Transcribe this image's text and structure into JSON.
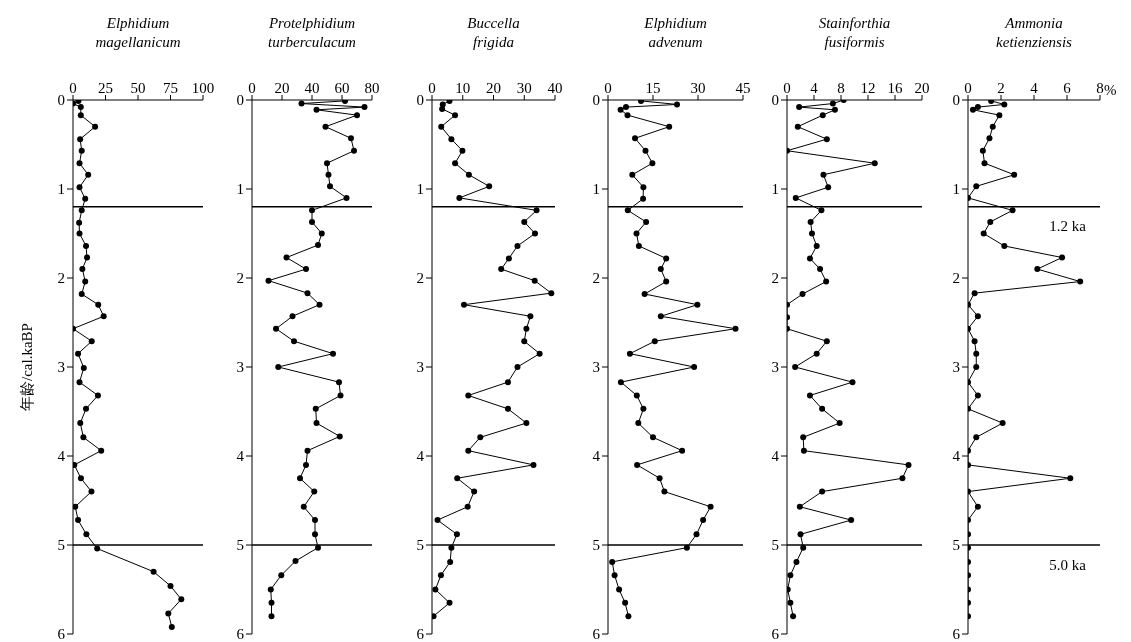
{
  "chart_data": [
    {
      "type": "line",
      "orientation": "horizontal",
      "title": "Elphidium magellanicum",
      "ylabel": "年龄/cal.kaBP",
      "xlim": [
        0,
        100
      ],
      "xticks": [
        0,
        25,
        50,
        75,
        100
      ],
      "ylim": [
        6,
        0
      ],
      "yticks": [
        0,
        1,
        2,
        3,
        4,
        5,
        6
      ],
      "marker": "circle",
      "series": [
        {
          "color": "#000000",
          "x": [
            0.01,
            0.04,
            0.08,
            0.17,
            0.3,
            0.44,
            0.57,
            0.71,
            0.84,
            0.98,
            1.11,
            1.24,
            1.38,
            1.5,
            1.64,
            1.77,
            1.9,
            2.04,
            2.18,
            2.3,
            2.43,
            2.57,
            2.71,
            2.85,
            3.01,
            3.17,
            3.32,
            3.47,
            3.63,
            3.79,
            3.94,
            4.1,
            4.25,
            4.4,
            4.57,
            4.72,
            4.88,
            5.04,
            5.3,
            5.46,
            5.61,
            5.77,
            5.92
          ],
          "values": [
            4.2,
            0,
            6,
            6,
            17,
            5.5,
            6.7,
            5,
            11.7,
            5,
            9.4,
            6.7,
            4.7,
            5,
            10,
            10.8,
            7.2,
            9.4,
            6.7,
            19.4,
            23.6,
            0,
            14.4,
            3.9,
            8.3,
            5,
            19.2,
            10,
            5.6,
            8,
            21.7,
            1,
            6.1,
            14.2,
            1.7,
            3.9,
            10.3,
            18.6,
            62,
            75,
            83.3,
            73.3,
            76
          ]
        }
      ],
      "ref_lines": [
        {
          "axis": "y",
          "value": 1.2
        },
        {
          "axis": "y",
          "value": 5.0
        }
      ]
    },
    {
      "type": "line",
      "orientation": "horizontal",
      "title": "Protelphidium turberculacum",
      "xlim": [
        0,
        80
      ],
      "xticks": [
        0,
        20,
        40,
        60,
        80
      ],
      "ylim": [
        6,
        0
      ],
      "yticks": [
        0,
        1,
        2,
        3,
        4,
        5,
        6
      ],
      "marker": "circle",
      "series": [
        {
          "color": "#000000",
          "x": [
            0.01,
            0.04,
            0.08,
            0.11,
            0.17,
            0.3,
            0.43,
            0.57,
            0.71,
            0.84,
            0.97,
            1.1,
            1.24,
            1.37,
            1.5,
            1.63,
            1.77,
            1.9,
            2.03,
            2.17,
            2.3,
            2.43,
            2.57,
            2.71,
            2.85,
            3.0,
            3.17,
            3.32,
            3.47,
            3.63,
            3.78,
            3.94,
            4.1,
            4.25,
            4.4,
            4.57,
            4.72,
            4.88,
            5.03,
            5.18,
            5.34,
            5.5,
            5.65,
            5.8
          ],
          "values": [
            62,
            33,
            75,
            43,
            70,
            49,
            66,
            68,
            50,
            51,
            52,
            63,
            40,
            40,
            46.5,
            44,
            23,
            36,
            11,
            37,
            45,
            27,
            16,
            28,
            54,
            17.5,
            58,
            59,
            42.5,
            43,
            58.5,
            37,
            36,
            32,
            41.5,
            34.5,
            42,
            42,
            44,
            29,
            19.5,
            12.5,
            13,
            13
          ]
        }
      ],
      "ref_lines": [
        {
          "axis": "y",
          "value": 1.2
        },
        {
          "axis": "y",
          "value": 5.0
        }
      ]
    },
    {
      "type": "line",
      "orientation": "horizontal",
      "title": "Buccella frigida",
      "xlim": [
        0,
        40
      ],
      "xticks": [
        0,
        10,
        20,
        30,
        40
      ],
      "ylim": [
        6,
        0
      ],
      "yticks": [
        0,
        1,
        2,
        3,
        4,
        5,
        6
      ],
      "marker": "circle",
      "series": [
        {
          "color": "#000000",
          "x": [
            0.01,
            0.05,
            0.1,
            0.17,
            0.3,
            0.44,
            0.57,
            0.71,
            0.84,
            0.97,
            1.1,
            1.24,
            1.37,
            1.5,
            1.64,
            1.78,
            1.9,
            2.03,
            2.17,
            2.3,
            2.43,
            2.57,
            2.71,
            2.85,
            3.0,
            3.17,
            3.32,
            3.47,
            3.63,
            3.79,
            3.94,
            4.1,
            4.25,
            4.4,
            4.57,
            4.72,
            4.88,
            5.03,
            5.19,
            5.34,
            5.5,
            5.65,
            5.8
          ],
          "values": [
            5.7,
            3.5,
            3.3,
            7.5,
            3,
            6.3,
            9.9,
            7.5,
            12,
            18.6,
            8.9,
            34,
            30,
            33.5,
            27.8,
            25,
            22.5,
            33.4,
            38.8,
            10.4,
            32,
            30.7,
            30,
            35,
            27.8,
            24.7,
            11.8,
            24.7,
            30.7,
            15.7,
            11.8,
            33,
            8.2,
            13.7,
            11.6,
            1.8,
            8.1,
            6.3,
            5.9,
            2.9,
            1.1,
            5.7,
            0.5
          ]
        }
      ],
      "ref_lines": [
        {
          "axis": "y",
          "value": 1.2
        },
        {
          "axis": "y",
          "value": 5.0
        }
      ]
    },
    {
      "type": "line",
      "orientation": "horizontal",
      "title": "Elphidium advenum",
      "xlim": [
        0,
        45
      ],
      "xticks": [
        0,
        15,
        30,
        45
      ],
      "ylim": [
        6,
        0
      ],
      "yticks": [
        0,
        1,
        2,
        3,
        4,
        5,
        6
      ],
      "marker": "circle",
      "series": [
        {
          "color": "#000000",
          "x": [
            0.01,
            0.05,
            0.08,
            0.11,
            0.17,
            0.3,
            0.43,
            0.57,
            0.71,
            0.84,
            0.98,
            1.11,
            1.24,
            1.37,
            1.5,
            1.64,
            1.78,
            1.9,
            2.04,
            2.18,
            2.3,
            2.43,
            2.57,
            2.71,
            2.85,
            3.0,
            3.17,
            3.32,
            3.47,
            3.63,
            3.79,
            3.94,
            4.1,
            4.25,
            4.4,
            4.57,
            4.72,
            4.88,
            5.03,
            5.19,
            5.34,
            5.5,
            5.65,
            5.8
          ],
          "values": [
            11,
            23,
            6,
            4.2,
            6.5,
            20.4,
            9,
            12.5,
            14.8,
            8.1,
            11.8,
            11.7,
            6.6,
            12.7,
            9.5,
            10.3,
            19.4,
            17.6,
            19.4,
            12.2,
            29.8,
            17.6,
            42.5,
            15.6,
            7.3,
            28.7,
            4.3,
            9.6,
            11.8,
            10.1,
            15,
            24.7,
            9.7,
            17.2,
            18.8,
            34.2,
            31.7,
            29.5,
            26.3,
            1.4,
            2.2,
            3.7,
            5.7,
            6.8
          ]
        }
      ],
      "ref_lines": [
        {
          "axis": "y",
          "value": 1.2
        },
        {
          "axis": "y",
          "value": 5.0
        }
      ]
    },
    {
      "type": "line",
      "orientation": "horizontal",
      "title": "Stainforthia fusiformis",
      "xlim": [
        0,
        20
      ],
      "xticks": [
        0,
        4,
        8,
        12,
        16,
        20
      ],
      "ylim": [
        6,
        0
      ],
      "yticks": [
        0,
        1,
        2,
        3,
        4,
        5,
        6
      ],
      "marker": "circle",
      "series": [
        {
          "color": "#000000",
          "x": [
            0.0,
            0.04,
            0.08,
            0.11,
            0.17,
            0.3,
            0.44,
            0.57,
            0.71,
            0.84,
            0.98,
            1.1,
            1.24,
            1.37,
            1.5,
            1.64,
            1.78,
            1.9,
            2.04,
            2.18,
            2.3,
            2.44,
            2.57,
            2.71,
            2.85,
            3.0,
            3.17,
            3.32,
            3.47,
            3.63,
            3.79,
            3.94,
            4.1,
            4.25,
            4.4,
            4.57,
            4.72,
            4.88,
            5.03,
            5.19,
            5.34,
            5.5,
            5.65,
            5.8
          ],
          "values": [
            8.4,
            6.8,
            1.8,
            7.1,
            5.3,
            1.6,
            5.9,
            0,
            13,
            5.4,
            6.1,
            1.3,
            5.1,
            3.5,
            3.7,
            4.4,
            3.4,
            4.9,
            5.8,
            2.3,
            0,
            0,
            0,
            5.9,
            4.4,
            1.2,
            9.7,
            3.4,
            5.2,
            7.8,
            2.4,
            2.5,
            18,
            17.1,
            5.2,
            1.9,
            9.5,
            2,
            2.4,
            1.4,
            0.5,
            0.1,
            0.5,
            0.9
          ]
        }
      ],
      "ref_lines": [
        {
          "axis": "y",
          "value": 1.2
        },
        {
          "axis": "y",
          "value": 5.0
        }
      ]
    },
    {
      "type": "line",
      "orientation": "horizontal",
      "title": "Ammonia ketienziensis",
      "xlabel": "%",
      "xlim": [
        0,
        8
      ],
      "xticks": [
        0,
        2,
        4,
        6,
        8
      ],
      "ylim": [
        6,
        0
      ],
      "yticks": [
        0,
        1,
        2,
        3,
        4,
        5,
        6
      ],
      "marker": "circle",
      "series": [
        {
          "color": "#000000",
          "x": [
            0.01,
            0.05,
            0.08,
            0.11,
            0.17,
            0.3,
            0.43,
            0.57,
            0.71,
            0.84,
            0.97,
            1.1,
            1.24,
            1.37,
            1.5,
            1.64,
            1.77,
            1.9,
            2.04,
            2.17,
            2.3,
            2.43,
            2.57,
            2.71,
            2.85,
            3.0,
            3.17,
            3.32,
            3.47,
            3.63,
            3.79,
            3.94,
            4.1,
            4.25,
            4.4,
            4.57,
            4.72,
            4.88,
            5.03,
            5.19,
            5.34,
            5.5,
            5.65,
            5.8
          ],
          "values": [
            1.4,
            2.2,
            0.6,
            0.3,
            1.9,
            1.5,
            1.3,
            0.9,
            1.0,
            2.8,
            0.5,
            0,
            2.7,
            1.35,
            0.95,
            2.2,
            5.7,
            4.2,
            6.8,
            0.4,
            0,
            0.6,
            0,
            0.4,
            0.5,
            0.5,
            0,
            0.6,
            0,
            2.1,
            0.5,
            0,
            0,
            6.2,
            0,
            0.6,
            0,
            0,
            0,
            0,
            0,
            0,
            0,
            0
          ]
        }
      ],
      "ref_lines": [
        {
          "axis": "y",
          "value": 1.2,
          "label": "1.2 ka"
        },
        {
          "axis": "y",
          "value": 5.0,
          "label": "5.0 ka"
        }
      ]
    }
  ]
}
